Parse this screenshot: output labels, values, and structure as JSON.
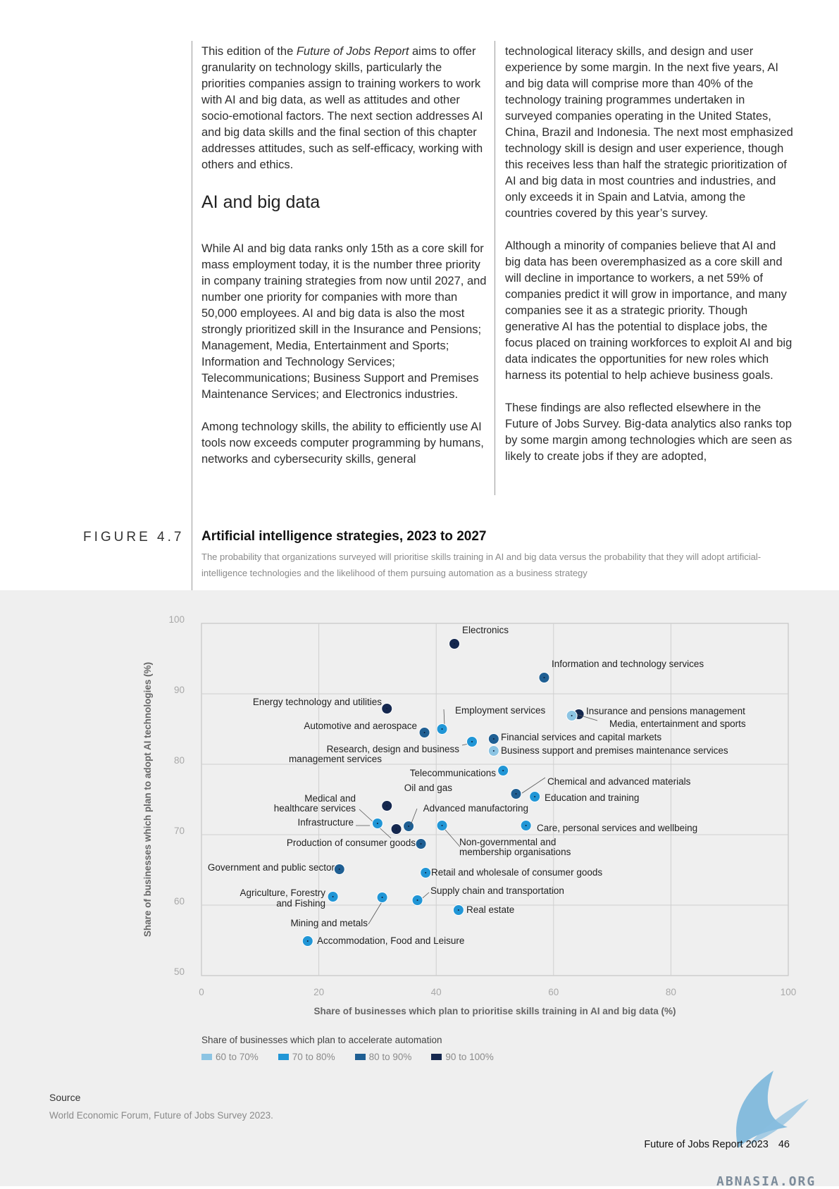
{
  "left_column": {
    "p1_before": "This edition of the ",
    "p1_italic": "Future of Jobs Report",
    "p1_after": " aims to offer granularity on technology skills, particularly the priorities companies assign to training workers to work with AI and big data, as well as attitudes and other socio-emotional factors. The next section addresses AI and big data skills and the final section of this chapter addresses attitudes, such as self-efficacy, working with others and ethics.",
    "heading": "AI and big data",
    "p2": "While AI and big data ranks only 15th as a core skill for mass employment today, it is the number three priority in company training strategies from now until 2027, and number one priority for companies with more than 50,000 employees. AI and big data is also the most strongly prioritized skill in the Insurance and Pensions; Management, Media, Entertainment and Sports; Information and Technology Services; Telecommunications; Business Support and Premises Maintenance Services; and Electronics industries.",
    "p3": "Among technology skills, the ability to efficiently use AI tools now exceeds computer programming by humans, networks and cybersecurity skills, general"
  },
  "right_column": {
    "p1": "technological literacy skills, and design and user experience by some margin. In the next five years, AI and big data will comprise more than 40% of the technology training programmes undertaken in surveyed companies operating in the United States, China, Brazil and Indonesia. The next most emphasized technology skill is design and user experience, though this receives less than half the strategic prioritization of AI and big data in most countries and industries, and only exceeds it in Spain and Latvia, among the countries covered by this year’s survey.",
    "p2": "Although a minority of companies believe that AI and big data has been overemphasized as a core skill and will decline in importance to workers, a net 59% of companies predict it will grow in importance, and many companies see it as a strategic priority. Though generative AI has the potential to displace jobs, the focus placed on training workforces to exploit AI and big data indicates the opportunities for new roles which harness its potential to help achieve business goals.",
    "p3": "These findings are also reflected elsewhere in the Future of Jobs Survey. Big-data analytics also ranks top by some margin among technologies which are seen as likely to create jobs if they are adopted,"
  },
  "figure": {
    "label": "FIGURE 4.7",
    "title": "Artificial intelligence strategies, 2023 to 2027",
    "subtitle": "The probability that organizations surveyed will prioritise skills training in AI and big data versus the probability that they will adopt artificial-intelligence technologies and the likelihood of them pursuing automation as a business strategy"
  },
  "chart_data": {
    "type": "scatter",
    "xlabel": "Share of businesses which plan to prioritise skills training in AI and big data (%)",
    "ylabel": "Share of businesses which plan to adopt AI technologies (%)",
    "xlim": [
      0,
      100
    ],
    "ylim": [
      50,
      100
    ],
    "xticks": [
      0,
      20,
      40,
      60,
      80,
      100
    ],
    "yticks": [
      50,
      60,
      70,
      80,
      90,
      100
    ],
    "grid": true,
    "legend_title": "Share of businesses which plan to accelerate automation",
    "legend_placement": "bottom-left",
    "categories": [
      {
        "key": "60-70",
        "label": "60 to 70%",
        "color": "#8cc4e3"
      },
      {
        "key": "70-80",
        "label": "70 to 80%",
        "color": "#2196d6"
      },
      {
        "key": "80-90",
        "label": "80 to 90%",
        "color": "#1f5f93"
      },
      {
        "key": "90-100",
        "label": "90 to 100%",
        "color": "#15284f"
      }
    ],
    "points": [
      {
        "label": "Electronics",
        "x": 43.1,
        "y": 97.1,
        "cat": "90-100"
      },
      {
        "label": "Information and technology services",
        "x": 58.4,
        "y": 92.3,
        "cat": "80-90"
      },
      {
        "label": "Energy technology and utilities",
        "x": 31.6,
        "y": 87.9,
        "cat": "90-100"
      },
      {
        "label": "Employment services",
        "x": 41.0,
        "y": 85.0,
        "cat": "70-80"
      },
      {
        "label": "Insurance and pensions management",
        "x": 64.3,
        "y": 87.1,
        "cat": "90-100"
      },
      {
        "label": "Media, entertainment and sports",
        "x": 63.1,
        "y": 86.9,
        "cat": "60-70"
      },
      {
        "label": "Automotive and aerospace",
        "x": 38.0,
        "y": 84.5,
        "cat": "80-90"
      },
      {
        "label": "Research, design and business management services",
        "x": 46.1,
        "y": 83.2,
        "cat": "70-80"
      },
      {
        "label": "Financial services and capital markets",
        "x": 49.8,
        "y": 83.6,
        "cat": "80-90"
      },
      {
        "label": "Business support and premises maintenance services",
        "x": 49.8,
        "y": 81.9,
        "cat": "60-70"
      },
      {
        "label": "Telecommunications",
        "x": 51.4,
        "y": 79.1,
        "cat": "70-80"
      },
      {
        "label": "Chemical and advanced materials",
        "x": 53.6,
        "y": 75.8,
        "cat": "80-90"
      },
      {
        "label": "Education and training",
        "x": 56.8,
        "y": 75.4,
        "cat": "70-80"
      },
      {
        "label": "Oil and gas",
        "x": 35.3,
        "y": 71.2,
        "cat": "80-90"
      },
      {
        "label": "Advanced manufactoring",
        "x": 41.0,
        "y": 71.3,
        "cat": "70-80"
      },
      {
        "label": "Medical and healthcare services",
        "x": 31.6,
        "y": 74.1,
        "cat": "90-100"
      },
      {
        "label": "Infrastructure",
        "x": 30.0,
        "y": 71.6,
        "cat": "70-80"
      },
      {
        "label": "Production of consumer goods",
        "x": 33.2,
        "y": 70.8,
        "cat": "90-100"
      },
      {
        "label": "Non-governmental and membership organisations",
        "x": 37.4,
        "y": 68.7,
        "cat": "80-90"
      },
      {
        "label": "Care, personal services and wellbeing",
        "x": 55.3,
        "y": 71.3,
        "cat": "70-80"
      },
      {
        "label": "Government and public sector",
        "x": 23.5,
        "y": 65.1,
        "cat": "80-90"
      },
      {
        "label": "Retail and wholesale of consumer goods",
        "x": 38.2,
        "y": 64.6,
        "cat": "70-80"
      },
      {
        "label": "Agriculture, Forestry and Fishing",
        "x": 22.4,
        "y": 61.2,
        "cat": "70-80"
      },
      {
        "label": "Mining and metals",
        "x": 30.8,
        "y": 61.1,
        "cat": "70-80"
      },
      {
        "label": "Supply chain and transportation",
        "x": 36.8,
        "y": 60.7,
        "cat": "70-80"
      },
      {
        "label": "Real estate",
        "x": 43.8,
        "y": 59.3,
        "cat": "70-80"
      },
      {
        "label": "Accommodation, Food and Leisure",
        "x": 18.1,
        "y": 54.9,
        "cat": "70-80"
      }
    ]
  },
  "source": {
    "label": "Source",
    "text": "World Economic Forum, Future of Jobs Survey 2023."
  },
  "footer": {
    "report": "Future of Jobs Report 2023",
    "page": "46"
  },
  "watermark": {
    "text": "ABNASIA.ORG"
  }
}
